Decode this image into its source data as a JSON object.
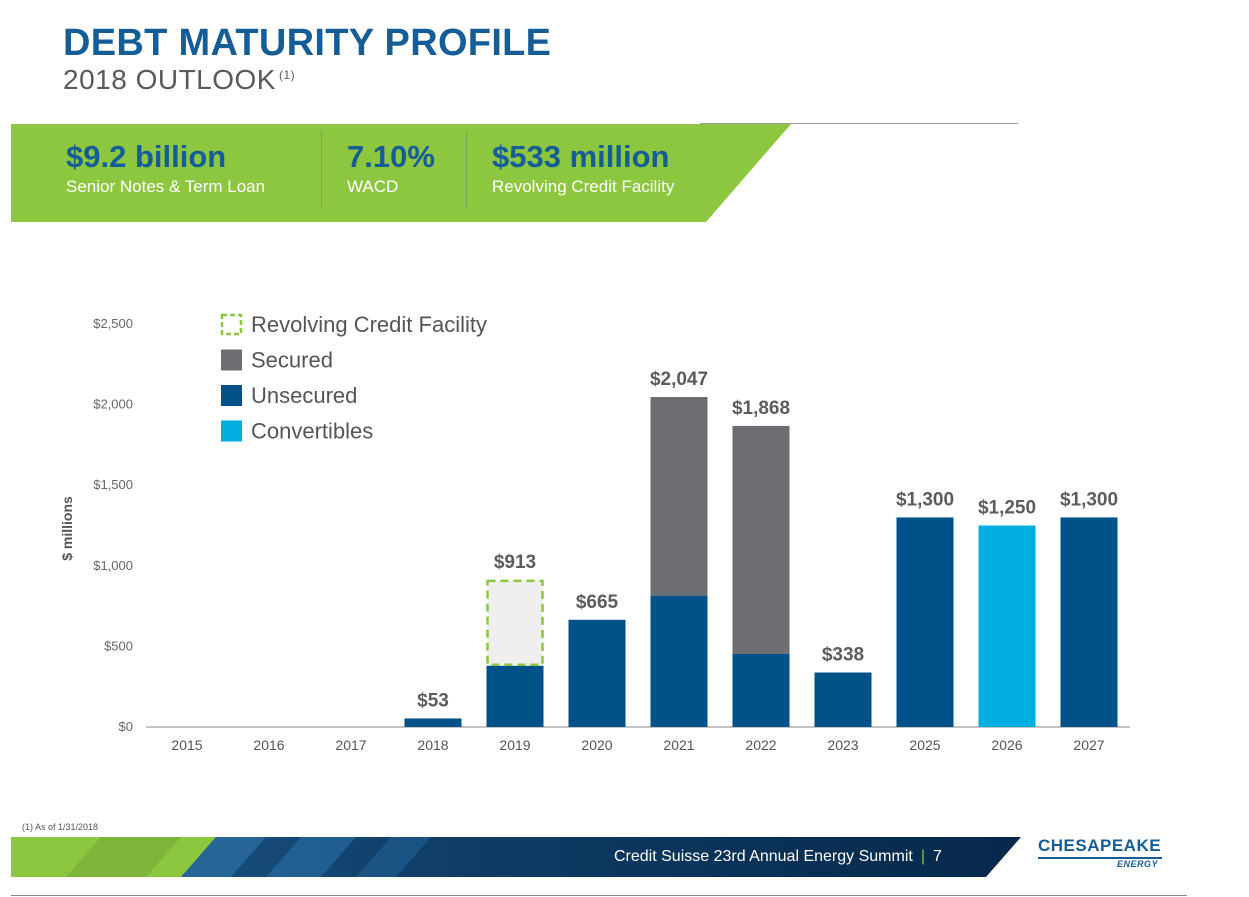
{
  "header": {
    "title": "DEBT MATURITY PROFILE",
    "subtitle": "2018 OUTLOOK",
    "subtitle_note": "(1)"
  },
  "banner": {
    "stats": [
      {
        "value": "$9.2 billion",
        "label": "Senior Notes & Term Loan"
      },
      {
        "value": "7.10%",
        "label": "WACD"
      },
      {
        "value": "$533 million",
        "label": "Revolving Credit Facility"
      }
    ]
  },
  "colors": {
    "navy": "#005288",
    "gray": "#6d6e71",
    "cyan": "#00aee0",
    "green": "#8dc63f",
    "title_blue": "#155d96"
  },
  "chart_data": {
    "type": "bar",
    "stacked": true,
    "ylabel": "$ millions",
    "ylim": [
      0,
      2500
    ],
    "y_ticks": [
      0,
      500,
      1000,
      1500,
      2000,
      2500
    ],
    "y_tick_labels": [
      "$0",
      "$500",
      "$1,000",
      "$1,500",
      "$2,000",
      "$2,500"
    ],
    "categories": [
      "2015",
      "2016",
      "2017",
      "2018",
      "2019",
      "2020",
      "2021",
      "2022",
      "2023",
      "2025",
      "2026",
      "2027"
    ],
    "series": [
      {
        "name": "Unsecured",
        "color": "#005288",
        "values": [
          0,
          0,
          0,
          53,
          380,
          665,
          815,
          453,
          338,
          1300,
          0,
          1300
        ]
      },
      {
        "name": "Secured",
        "color": "#6d6e71",
        "values": [
          0,
          0,
          0,
          0,
          0,
          0,
          1232,
          1415,
          0,
          0,
          0,
          0
        ]
      },
      {
        "name": "Convertibles",
        "color": "#00aee0",
        "values": [
          0,
          0,
          0,
          0,
          0,
          0,
          0,
          0,
          0,
          0,
          1250,
          0
        ]
      },
      {
        "name": "Revolving Credit Facility",
        "color": "#8dc63f",
        "style": "dashed",
        "values": [
          0,
          0,
          0,
          0,
          533,
          0,
          0,
          0,
          0,
          0,
          0,
          0
        ]
      }
    ],
    "legend_order": [
      "Revolving Credit Facility",
      "Secured",
      "Unsecured",
      "Convertibles"
    ],
    "totals": [
      null,
      null,
      null,
      53,
      913,
      665,
      2047,
      1868,
      338,
      1300,
      1250,
      1300
    ],
    "total_labels": [
      "",
      "",
      "",
      "$53",
      "$913",
      "$665",
      "$2,047",
      "$1,868",
      "$338",
      "$1,300",
      "$1,250",
      "$1,300"
    ],
    "legend_position": "top-left"
  },
  "footer": {
    "footnote": "(1) As of 1/31/2018",
    "event": "Credit Suisse 23rd Annual Energy Summit",
    "separator": "|",
    "page_number": "7",
    "logo_name": "CHESAPEAKE",
    "logo_sub": "ENERGY"
  }
}
